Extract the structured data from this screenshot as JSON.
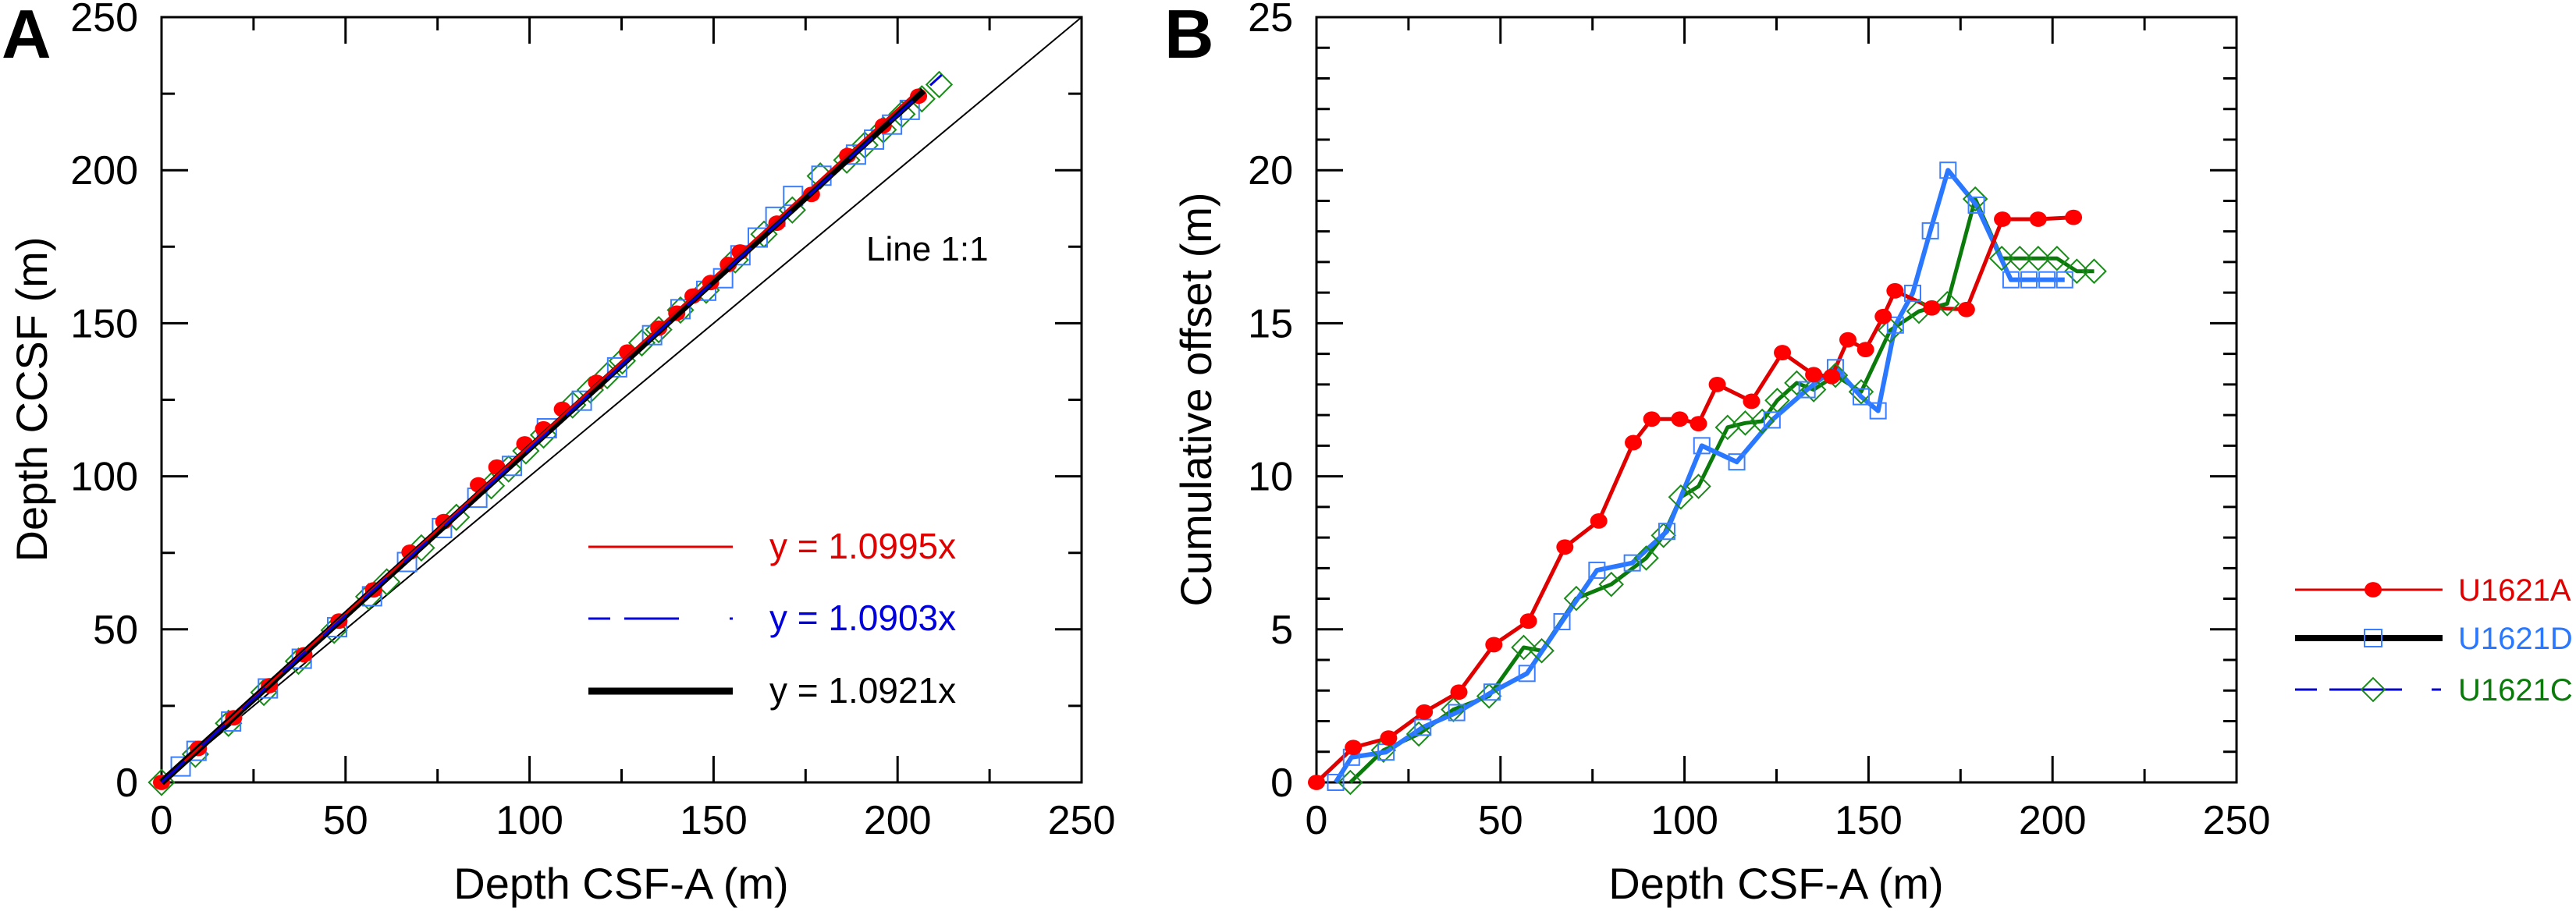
{
  "chart_data": [
    {
      "panel_label": "A",
      "type": "scatter",
      "xlabel": "Depth CSF-A (m)",
      "ylabel": "Depth CCSF (m)",
      "xlim": [
        0,
        250
      ],
      "ylim": [
        0,
        250
      ],
      "xticks": [
        0,
        50,
        100,
        150,
        200,
        250
      ],
      "yticks": [
        0,
        50,
        100,
        150,
        200,
        250
      ],
      "grid": false,
      "annotation": "Line 1:1",
      "regression_legend": [
        {
          "label": "y = 1.0995x",
          "slope": 1.0995,
          "color": "#e00000",
          "style": "thin"
        },
        {
          "label": "y = 1.0903x",
          "slope": 1.0903,
          "color": "#0000dd",
          "style": "dashed"
        },
        {
          "label": "y = 1.0921x",
          "slope": 1.0921,
          "color": "#000000",
          "style": "thick"
        }
      ],
      "series": [
        {
          "hole": "U1621A",
          "marker": "circle",
          "color": "#ff0000",
          "x": [
            0,
            10,
            19.6,
            29.3,
            38.7,
            48.2,
            57.6,
            67.5,
            76.7,
            86.1,
            91.1,
            98.7,
            103.8,
            108.9,
            118.2,
            126.6,
            135.1,
            140,
            144.4,
            149.2,
            154,
            157.2,
            167.2,
            176.6,
            186.4,
            196.1,
            205.7
          ],
          "y": [
            0,
            11.1,
            21.1,
            31.6,
            41.7,
            52.7,
            62.9,
            75.2,
            85.2,
            97.2,
            103,
            110.6,
            115.5,
            121.9,
            130.7,
            140.6,
            148.4,
            153.3,
            158.9,
            163.3,
            169.2,
            173.3,
            182.7,
            192.1,
            204.8,
            214.5,
            224.2
          ]
        },
        {
          "hole": "U1621D",
          "marker": "square",
          "color": "#3a7fff",
          "x": [
            5.2,
            9.5,
            18.9,
            28.9,
            38.1,
            47.7,
            57.2,
            66.7,
            76.2,
            85.8,
            95.2,
            104.7,
            114.2,
            123.8,
            133.3,
            141,
            148,
            152.6,
            157.3,
            162,
            166.8,
            171.6,
            179.3,
            188.7,
            193.6,
            198.5,
            203.3
          ],
          "y": [
            5.2,
            10.3,
            19.9,
            30.7,
            40.4,
            50.7,
            60.8,
            72,
            83.1,
            93,
            103.4,
            115.7,
            124.7,
            135.6,
            146.1,
            154.6,
            160.6,
            164.7,
            172.2,
            178,
            184.8,
            191.6,
            198.2,
            205.1,
            210,
            214.9,
            219.7
          ]
        },
        {
          "hole": "U1621C",
          "marker": "diamond",
          "color": "#1a8a1a",
          "x": [
            0,
            9.2,
            18.2,
            27.8,
            37.2,
            46.9,
            56.3,
            61.2,
            70.6,
            80.1,
            89.6,
            94.3,
            99,
            103.8,
            111.7,
            116.5,
            121.1,
            125.2,
            130.5,
            135.1,
            141,
            148,
            155.9,
            163.7,
            171.4,
            179,
            186.2,
            191.1,
            196.1,
            201.2,
            206.6,
            211.3
          ],
          "y": [
            0,
            9.2,
            19.3,
            29.4,
            39.6,
            49.7,
            60.7,
            65.5,
            76.6,
            86.6,
            96.9,
            102.4,
            108.3,
            113.5,
            123.3,
            128.2,
            132.9,
            137.7,
            143.6,
            147.9,
            154.3,
            160.8,
            170.7,
            179.1,
            187,
            198.1,
            203.3,
            208.2,
            213.2,
            218.3,
            223.3,
            228
          ]
        }
      ]
    },
    {
      "panel_label": "B",
      "type": "line",
      "xlabel": "Depth CSF-A (m)",
      "ylabel": "Cumulative offset (m)",
      "xlim": [
        0,
        250
      ],
      "ylim": [
        0,
        25
      ],
      "xticks": [
        0,
        50,
        100,
        150,
        200,
        250
      ],
      "yticks": [
        0,
        5,
        10,
        15,
        20,
        25
      ],
      "grid": false,
      "legend_position": "right-outside",
      "legend": [
        {
          "label": "U1621A",
          "text_color": "#e00000",
          "line_color": "#e00000",
          "line_style": "thin",
          "marker": "circle",
          "marker_color": "#ff0000"
        },
        {
          "label": "U1621D",
          "text_color": "#2a78ff",
          "line_color": "#000000",
          "line_style": "thick",
          "marker": "square",
          "marker_color": "#3a7fff"
        },
        {
          "label": "U1621C",
          "text_color": "#0a7a0a",
          "line_color": "#0000cc",
          "line_style": "dashed",
          "marker": "diamond",
          "marker_color": "#1a8a1a"
        }
      ],
      "series": [
        {
          "name": "U1621A",
          "line_color": "#e00000",
          "marker": "circle",
          "color": "#ff0000",
          "x": [
            0,
            10,
            19.6,
            29.3,
            38.7,
            48.2,
            57.6,
            67.5,
            76.7,
            86.1,
            91.1,
            98.7,
            103.8,
            108.9,
            118.2,
            126.6,
            135.1,
            140,
            144.4,
            149.2,
            154,
            157.2,
            167.2,
            176.6,
            186.4,
            196.1,
            205.7
          ],
          "y": [
            0,
            1.14,
            1.45,
            2.3,
            2.95,
            4.5,
            5.27,
            7.69,
            8.54,
            11.1,
            11.87,
            11.87,
            11.72,
            13.0,
            12.45,
            14.04,
            13.32,
            13.26,
            14.46,
            14.14,
            15.22,
            16.06,
            15.5,
            15.45,
            18.4,
            18.4,
            18.46
          ]
        },
        {
          "name": "U1621D",
          "line_color": "#2a78ff",
          "marker": "square",
          "color": "#3a7fff",
          "x": [
            5.2,
            9.5,
            18.9,
            28.9,
            38.1,
            47.7,
            57.2,
            66.7,
            76.2,
            85.8,
            95.2,
            104.7,
            114.2,
            123.8,
            133.3,
            141,
            148,
            152.6,
            157.3,
            162,
            166.8,
            171.6,
            179.3,
            188.7,
            193.6,
            198.5,
            203.3
          ],
          "y": [
            0,
            0.82,
            0.99,
            1.8,
            2.28,
            2.95,
            3.56,
            5.25,
            6.93,
            7.17,
            8.2,
            11.0,
            10.47,
            11.84,
            12.83,
            13.55,
            12.6,
            12.14,
            14.94,
            15.98,
            18.02,
            20.0,
            18.86,
            16.42,
            16.42,
            16.42,
            16.42
          ]
        },
        {
          "name": "U1621C",
          "line_color": "#0a7a0a",
          "marker": "diamond",
          "color": "#1a8a1a",
          "x": [
            9.2,
            18.2,
            27.8,
            37.2,
            46.9,
            56.3,
            61.2,
            70.6,
            80.1,
            89.6,
            94.3,
            99,
            103.8,
            111.7,
            116.5,
            121.1,
            125.2,
            130.5,
            135.1,
            141,
            148,
            155.9,
            163.7,
            171.4,
            179,
            186.2,
            191.1,
            196.1,
            201.2,
            206.6,
            211.3
          ],
          "y": [
            0,
            1.05,
            1.58,
            2.38,
            2.82,
            4.41,
            4.3,
            6.01,
            6.47,
            7.33,
            8.07,
            9.32,
            9.67,
            11.6,
            11.74,
            11.8,
            12.48,
            13.05,
            12.83,
            13.3,
            12.76,
            14.77,
            15.39,
            15.64,
            19.06,
            17.12,
            17.12,
            17.12,
            17.12,
            16.7,
            16.7
          ]
        }
      ]
    }
  ]
}
